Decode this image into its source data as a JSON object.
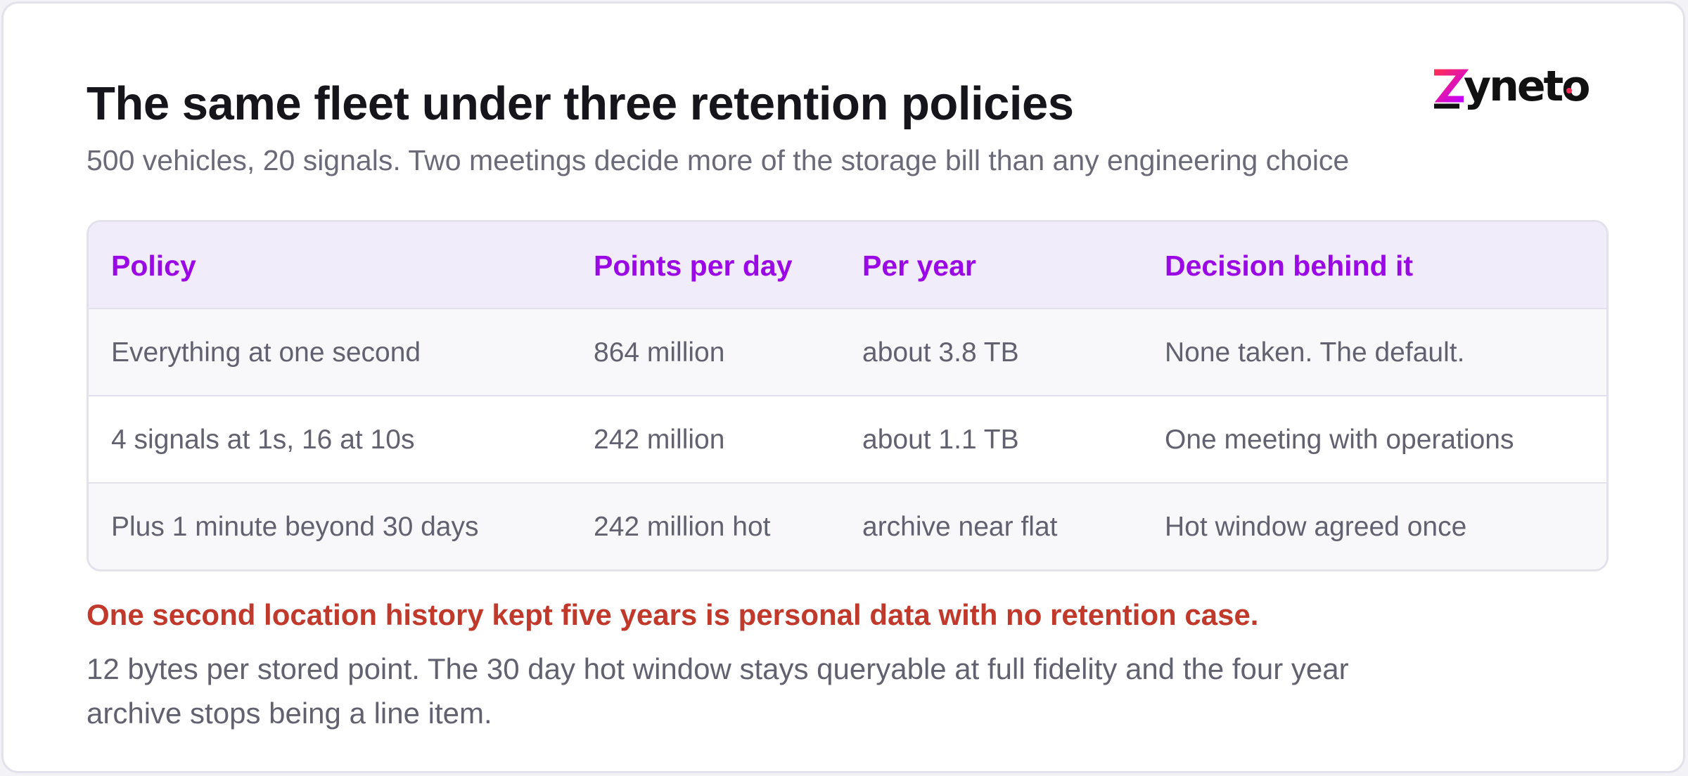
{
  "header": {
    "title": "The same fleet under three retention policies",
    "subtitle": "500 vehicles, 20 signals. Two meetings decide more of the storage bill than any engineering choice"
  },
  "logo": {
    "text": "zyneto",
    "colors": [
      "#ff2d55",
      "#c500ff",
      "#111111"
    ]
  },
  "table": {
    "columns": [
      "Policy",
      "Points per day",
      "Per year",
      "Decision behind it"
    ],
    "rows": [
      [
        "Everything at one second",
        "864 million",
        "about 3.8 TB",
        "None taken. The default."
      ],
      [
        "4 signals at 1s, 16 at 10s",
        "242 million",
        "about 1.1 TB",
        "One meeting with operations"
      ],
      [
        "Plus 1 minute beyond 30 days",
        "242 million hot",
        "archive near flat",
        "Hot window agreed once"
      ]
    ]
  },
  "warning": "One second location history kept five years is personal data with no retention case.",
  "note": "12 bytes per stored point. The 30 day hot window stays queryable at full fidelity and the four year archive stops being a line item.",
  "colors": {
    "accent": "#9a08e6",
    "warning": "#c0392b",
    "header_bg": "#f1ecfa"
  }
}
